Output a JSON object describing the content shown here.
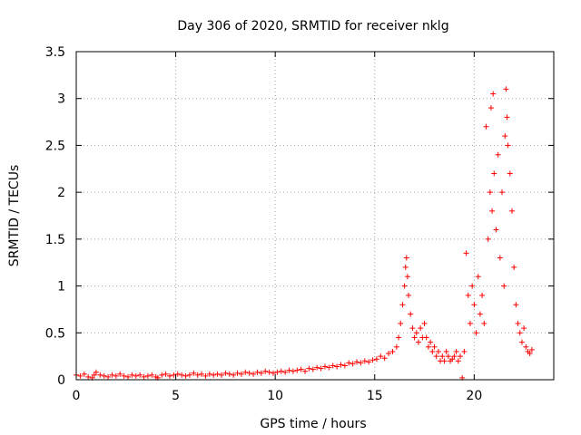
{
  "chart_data": {
    "type": "scatter",
    "title": "Day 306 of 2020, SRMTID for receiver nklg",
    "xlabel": "GPS time / hours",
    "ylabel": "SRMTID / TECUs",
    "xlim": [
      0,
      24
    ],
    "ylim": [
      0,
      3.5
    ],
    "x_ticks": [
      0,
      5,
      10,
      15,
      20
    ],
    "y_ticks": [
      0,
      0.5,
      1,
      1.5,
      2,
      2.5,
      3,
      3.5
    ],
    "x_tick_labels": [
      "0",
      "5",
      "10",
      "15",
      "20"
    ],
    "y_tick_labels": [
      "0",
      "0.5",
      "1",
      "1.5",
      "2",
      "2.5",
      "3",
      "3.5"
    ],
    "grid": true,
    "marker": "+",
    "marker_color": "#ff0000",
    "series": [
      {
        "name": "SRMTID",
        "points": [
          [
            0.0,
            0.05
          ],
          [
            0.2,
            0.04
          ],
          [
            0.4,
            0.06
          ],
          [
            0.6,
            0.03
          ],
          [
            0.8,
            0.02
          ],
          [
            0.9,
            0.05
          ],
          [
            1.0,
            0.08
          ],
          [
            1.2,
            0.05
          ],
          [
            1.4,
            0.04
          ],
          [
            1.6,
            0.03
          ],
          [
            1.8,
            0.05
          ],
          [
            2.0,
            0.04
          ],
          [
            2.2,
            0.06
          ],
          [
            2.4,
            0.04
          ],
          [
            2.6,
            0.03
          ],
          [
            2.8,
            0.05
          ],
          [
            3.0,
            0.04
          ],
          [
            3.2,
            0.05
          ],
          [
            3.4,
            0.03
          ],
          [
            3.6,
            0.04
          ],
          [
            3.8,
            0.05
          ],
          [
            4.0,
            0.03
          ],
          [
            4.1,
            0.02
          ],
          [
            4.3,
            0.05
          ],
          [
            4.5,
            0.06
          ],
          [
            4.7,
            0.04
          ],
          [
            4.9,
            0.05
          ],
          [
            5.1,
            0.06
          ],
          [
            5.3,
            0.05
          ],
          [
            5.5,
            0.04
          ],
          [
            5.7,
            0.05
          ],
          [
            5.9,
            0.07
          ],
          [
            6.1,
            0.05
          ],
          [
            6.3,
            0.06
          ],
          [
            6.5,
            0.04
          ],
          [
            6.7,
            0.06
          ],
          [
            6.9,
            0.05
          ],
          [
            7.1,
            0.06
          ],
          [
            7.3,
            0.05
          ],
          [
            7.5,
            0.07
          ],
          [
            7.7,
            0.06
          ],
          [
            7.9,
            0.05
          ],
          [
            8.1,
            0.07
          ],
          [
            8.3,
            0.06
          ],
          [
            8.5,
            0.08
          ],
          [
            8.7,
            0.07
          ],
          [
            8.9,
            0.06
          ],
          [
            9.1,
            0.08
          ],
          [
            9.3,
            0.07
          ],
          [
            9.5,
            0.09
          ],
          [
            9.7,
            0.08
          ],
          [
            9.9,
            0.07
          ],
          [
            10.1,
            0.08
          ],
          [
            10.3,
            0.09
          ],
          [
            10.5,
            0.08
          ],
          [
            10.7,
            0.1
          ],
          [
            10.9,
            0.09
          ],
          [
            11.1,
            0.1
          ],
          [
            11.3,
            0.11
          ],
          [
            11.5,
            0.09
          ],
          [
            11.7,
            0.12
          ],
          [
            11.9,
            0.11
          ],
          [
            12.1,
            0.13
          ],
          [
            12.3,
            0.12
          ],
          [
            12.5,
            0.14
          ],
          [
            12.7,
            0.13
          ],
          [
            12.9,
            0.15
          ],
          [
            13.1,
            0.14
          ],
          [
            13.3,
            0.16
          ],
          [
            13.5,
            0.15
          ],
          [
            13.7,
            0.18
          ],
          [
            13.9,
            0.17
          ],
          [
            14.1,
            0.19
          ],
          [
            14.3,
            0.18
          ],
          [
            14.5,
            0.2
          ],
          [
            14.7,
            0.19
          ],
          [
            14.9,
            0.21
          ],
          [
            15.1,
            0.22
          ],
          [
            15.3,
            0.25
          ],
          [
            15.5,
            0.23
          ],
          [
            15.7,
            0.28
          ],
          [
            15.9,
            0.3
          ],
          [
            16.1,
            0.35
          ],
          [
            16.2,
            0.45
          ],
          [
            16.3,
            0.6
          ],
          [
            16.4,
            0.8
          ],
          [
            16.5,
            1.0
          ],
          [
            16.55,
            1.2
          ],
          [
            16.6,
            1.3
          ],
          [
            16.65,
            1.1
          ],
          [
            16.7,
            0.9
          ],
          [
            16.8,
            0.7
          ],
          [
            16.9,
            0.55
          ],
          [
            17.0,
            0.45
          ],
          [
            17.1,
            0.5
          ],
          [
            17.2,
            0.4
          ],
          [
            17.3,
            0.55
          ],
          [
            17.4,
            0.45
          ],
          [
            17.5,
            0.6
          ],
          [
            17.6,
            0.45
          ],
          [
            17.7,
            0.35
          ],
          [
            17.8,
            0.4
          ],
          [
            17.9,
            0.3
          ],
          [
            18.0,
            0.35
          ],
          [
            18.1,
            0.25
          ],
          [
            18.2,
            0.3
          ],
          [
            18.3,
            0.2
          ],
          [
            18.4,
            0.25
          ],
          [
            18.5,
            0.2
          ],
          [
            18.6,
            0.3
          ],
          [
            18.7,
            0.25
          ],
          [
            18.8,
            0.2
          ],
          [
            18.9,
            0.22
          ],
          [
            19.0,
            0.25
          ],
          [
            19.1,
            0.3
          ],
          [
            19.2,
            0.2
          ],
          [
            19.3,
            0.25
          ],
          [
            19.4,
            0.02
          ],
          [
            19.5,
            0.3
          ],
          [
            19.6,
            1.35
          ],
          [
            19.7,
            0.9
          ],
          [
            19.8,
            0.6
          ],
          [
            19.9,
            1.0
          ],
          [
            20.0,
            0.8
          ],
          [
            20.1,
            0.5
          ],
          [
            20.2,
            1.1
          ],
          [
            20.3,
            0.7
          ],
          [
            20.4,
            0.9
          ],
          [
            20.5,
            0.6
          ],
          [
            20.6,
            2.7
          ],
          [
            20.7,
            1.5
          ],
          [
            20.8,
            2.0
          ],
          [
            20.85,
            2.9
          ],
          [
            20.9,
            1.8
          ],
          [
            20.95,
            3.05
          ],
          [
            21.0,
            2.2
          ],
          [
            21.1,
            1.6
          ],
          [
            21.2,
            2.4
          ],
          [
            21.3,
            1.3
          ],
          [
            21.4,
            2.0
          ],
          [
            21.5,
            1.0
          ],
          [
            21.55,
            2.6
          ],
          [
            21.6,
            3.1
          ],
          [
            21.65,
            2.8
          ],
          [
            21.7,
            2.5
          ],
          [
            21.8,
            2.2
          ],
          [
            21.9,
            1.8
          ],
          [
            22.0,
            1.2
          ],
          [
            22.1,
            0.8
          ],
          [
            22.2,
            0.6
          ],
          [
            22.3,
            0.5
          ],
          [
            22.4,
            0.4
          ],
          [
            22.5,
            0.55
          ],
          [
            22.6,
            0.35
          ],
          [
            22.7,
            0.3
          ],
          [
            22.8,
            0.28
          ],
          [
            22.9,
            0.32
          ]
        ]
      }
    ]
  }
}
